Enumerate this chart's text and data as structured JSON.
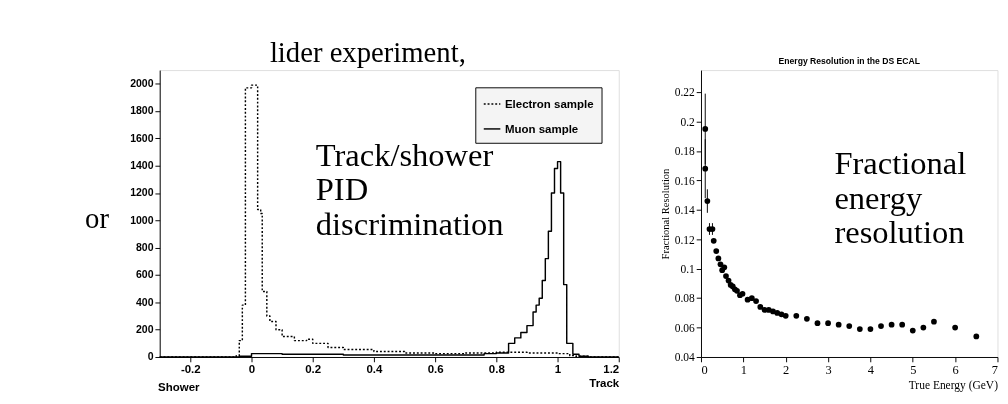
{
  "chart_data": [
    {
      "type": "step",
      "xlabel": "Track",
      "xlim": [
        -0.3,
        1.2
      ],
      "ylim": [
        0,
        2100
      ],
      "xticks": [
        -0.2,
        0,
        0.2,
        0.4,
        0.6,
        0.8,
        1,
        1.2
      ],
      "yticks": [
        0,
        200,
        400,
        600,
        800,
        1000,
        1200,
        1400,
        1600,
        1800,
        2000
      ],
      "legend": "top right",
      "grid": false,
      "annotations": [
        "Shower",
        "Track/shower\nPID\ndiscrimination",
        "lider experiment,",
        "or"
      ],
      "series": [
        {
          "name": "Electron sample",
          "color": "#000000",
          "line_style": "dotted",
          "x": [
            -0.3,
            -0.06,
            -0.05,
            -0.04,
            -0.03,
            -0.02,
            0.0,
            0.02,
            0.03,
            0.035,
            0.05,
            0.06,
            0.08,
            0.1,
            0.14,
            0.18,
            0.2,
            0.25,
            0.3,
            0.4,
            0.5,
            0.6,
            0.7,
            0.8,
            0.9,
            1.0,
            1.04,
            1.06,
            1.1,
            1.2
          ],
          "values": [
            0,
            0,
            10,
            120,
            380,
            1970,
            1990,
            1080,
            1050,
            480,
            300,
            260,
            200,
            150,
            120,
            130,
            100,
            70,
            55,
            40,
            30,
            25,
            30,
            35,
            30,
            25,
            10,
            5,
            0,
            0
          ]
        },
        {
          "name": "Muon sample",
          "color": "#000000",
          "line_style": "solid",
          "x": [
            -0.3,
            -0.04,
            0.0,
            0.1,
            0.3,
            0.6,
            0.76,
            0.8,
            0.84,
            0.86,
            0.88,
            0.9,
            0.92,
            0.93,
            0.94,
            0.95,
            0.96,
            0.97,
            0.98,
            0.99,
            1.0,
            1.01,
            1.02,
            1.03,
            1.05,
            1.07,
            1.1,
            1.2
          ],
          "values": [
            0,
            5,
            25,
            20,
            15,
            15,
            25,
            30,
            100,
            140,
            180,
            230,
            330,
            380,
            430,
            560,
            720,
            920,
            1200,
            1380,
            1430,
            1200,
            530,
            100,
            20,
            5,
            0,
            0
          ]
        }
      ]
    },
    {
      "type": "scatter",
      "title": "Energy Resolution in the DS ECAL",
      "xlabel": "True Energy (GeV)",
      "ylabel": "Fractional Resolution",
      "xlim": [
        0,
        7
      ],
      "ylim": [
        0.04,
        0.235
      ],
      "xticks": [
        0,
        1,
        2,
        3,
        4,
        5,
        6,
        7
      ],
      "yticks": [
        0.04,
        0.06,
        0.08,
        0.1,
        0.12,
        0.14,
        0.16,
        0.18,
        0.2,
        0.22
      ],
      "marker": "circle",
      "grid": false,
      "annotations": [
        "Fractional\nenergy\nresolution"
      ],
      "x": [
        0.1,
        0.1,
        0.15,
        0.2,
        0.27,
        0.3,
        0.36,
        0.41,
        0.46,
        0.5,
        0.55,
        0.59,
        0.65,
        0.7,
        0.75,
        0.8,
        0.85,
        0.92,
        0.98,
        1.1,
        1.2,
        1.3,
        1.4,
        1.5,
        1.6,
        1.7,
        1.8,
        1.9,
        2.0,
        2.25,
        2.5,
        2.75,
        3.0,
        3.25,
        3.5,
        3.75,
        4.0,
        4.25,
        4.5,
        4.75,
        5.0,
        5.25,
        5.5,
        6.0,
        6.5
      ],
      "values": [
        0.195,
        0.168,
        0.146,
        0.127,
        0.127,
        0.119,
        0.112,
        0.107,
        0.103,
        0.099,
        0.101,
        0.095,
        0.092,
        0.089,
        0.088,
        0.086,
        0.085,
        0.082,
        0.083,
        0.079,
        0.08,
        0.078,
        0.074,
        0.072,
        0.072,
        0.071,
        0.07,
        0.069,
        0.068,
        0.068,
        0.066,
        0.063,
        0.063,
        0.062,
        0.061,
        0.059,
        0.059,
        0.061,
        0.062,
        0.062,
        0.058,
        0.06,
        0.064,
        0.06,
        0.054
      ],
      "errors": [
        0.024,
        0.02,
        0.008,
        0.004,
        0.004,
        null,
        null,
        null,
        null,
        null,
        null,
        null,
        null,
        null,
        null,
        null,
        null,
        null,
        null,
        null,
        null,
        null,
        null,
        null,
        null,
        null,
        null,
        null,
        null,
        null,
        null,
        null,
        null,
        null,
        null,
        null,
        null,
        null,
        null,
        null,
        null,
        null,
        null,
        null,
        null
      ],
      "color": "#000000"
    }
  ]
}
